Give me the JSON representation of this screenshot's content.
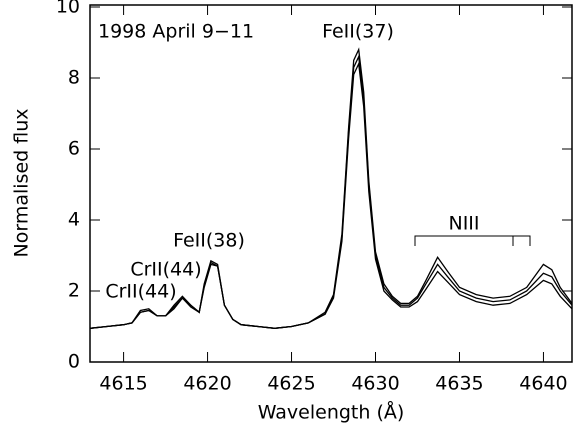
{
  "chart_data": {
    "type": "line",
    "x_label": "Wavelength (Å)",
    "y_label": "Normalised flux",
    "annotations": [
      "1998 April 9−11",
      "FeII(37)",
      "FeII(38)",
      "CrII(44)",
      "CrII(44)",
      "NIII"
    ],
    "x": [
      4613,
      4614,
      4615,
      4615.5,
      4616,
      4616.5,
      4617,
      4617.5,
      4618,
      4618.5,
      4619,
      4619.5,
      4619.8,
      4620.2,
      4620.6,
      4621,
      4621.5,
      4622,
      4623,
      4624,
      4625,
      4626,
      4627,
      4627.5,
      4628,
      4628.4,
      4628.7,
      4629,
      4629.3,
      4629.6,
      4630,
      4630.5,
      4631,
      4631.5,
      4632,
      4632.5,
      4633,
      4633.7,
      4634.3,
      4635,
      4636,
      4637,
      4638,
      4639,
      4640,
      4640.5,
      4641,
      4641.7
    ],
    "series": [
      {
        "color": "#000000",
        "values": [
          0.95,
          1.0,
          1.05,
          1.1,
          1.45,
          1.5,
          1.3,
          1.3,
          1.6,
          1.85,
          1.6,
          1.4,
          2.2,
          2.85,
          2.75,
          1.6,
          1.2,
          1.05,
          1.0,
          0.95,
          1.0,
          1.1,
          1.4,
          1.9,
          3.6,
          6.6,
          8.5,
          8.8,
          7.6,
          5.1,
          3.1,
          2.2,
          1.85,
          1.65,
          1.65,
          1.85,
          2.3,
          2.95,
          2.55,
          2.1,
          1.9,
          1.8,
          1.85,
          2.1,
          2.75,
          2.6,
          2.1,
          1.65
        ]
      },
      {
        "color": "#000000",
        "values": [
          0.95,
          1.0,
          1.05,
          1.1,
          1.4,
          1.45,
          1.3,
          1.3,
          1.55,
          1.8,
          1.6,
          1.4,
          2.15,
          2.8,
          2.7,
          1.6,
          1.2,
          1.05,
          1.0,
          0.95,
          1.0,
          1.1,
          1.35,
          1.85,
          3.5,
          6.5,
          8.3,
          8.6,
          7.4,
          5.0,
          3.0,
          2.1,
          1.8,
          1.6,
          1.6,
          1.8,
          2.2,
          2.75,
          2.4,
          2.0,
          1.8,
          1.7,
          1.75,
          2.0,
          2.5,
          2.4,
          2.0,
          1.6
        ]
      },
      {
        "color": "#000000",
        "values": [
          0.95,
          1.0,
          1.05,
          1.1,
          1.4,
          1.45,
          1.3,
          1.3,
          1.5,
          1.8,
          1.55,
          1.4,
          2.1,
          2.75,
          2.7,
          1.6,
          1.2,
          1.05,
          1.0,
          0.95,
          1.0,
          1.1,
          1.35,
          1.8,
          3.4,
          6.3,
          8.1,
          8.4,
          7.2,
          4.8,
          2.9,
          2.0,
          1.75,
          1.55,
          1.55,
          1.7,
          2.05,
          2.55,
          2.25,
          1.9,
          1.7,
          1.6,
          1.65,
          1.9,
          2.3,
          2.2,
          1.85,
          1.5
        ]
      }
    ],
    "xlim": [
      4613,
      4641.7
    ],
    "ylim": [
      0,
      10
    ],
    "xticks": [
      4615,
      4620,
      4625,
      4630,
      4635,
      4640
    ],
    "yticks": [
      0,
      2,
      4,
      6,
      8,
      10
    ]
  }
}
